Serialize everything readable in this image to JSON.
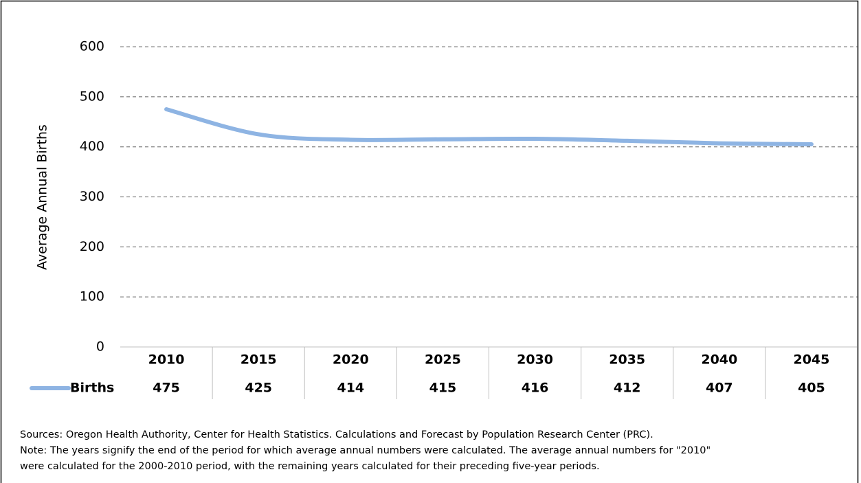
{
  "chart_data": {
    "type": "line",
    "y_label": "Average Annual Births",
    "categories": [
      "2010",
      "2015",
      "2020",
      "2025",
      "2030",
      "2035",
      "2040",
      "2045"
    ],
    "series": [
      {
        "name": "Births",
        "color": "#8eb4e3",
        "values": [
          475,
          425,
          414,
          415,
          416,
          412,
          407,
          405
        ]
      }
    ],
    "ylim": [
      0,
      600
    ],
    "yticks": [
      0,
      100,
      200,
      300,
      400,
      500,
      600
    ],
    "grid": true,
    "notes": [
      "Sources: Oregon Health Authority, Center for Health Statistics. Calculations and Forecast by Population Research Center (PRC).",
      "Note: The years signify the end of the period for which average annual numbers were calculated. The average annual numbers for \"2010\"",
      "were calculated for the 2000-2010 period, with the remaining years calculated for their preceding five-year periods."
    ]
  }
}
